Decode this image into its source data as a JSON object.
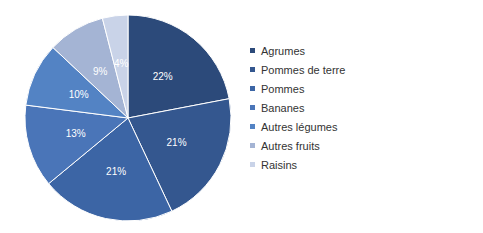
{
  "chart_data": {
    "type": "pie",
    "categories": [
      "Agrumes",
      "Pommes de terre",
      "Pommes",
      "Bananes",
      "Autres légumes",
      "Autres fruits",
      "Raisins"
    ],
    "values": [
      22,
      21,
      21,
      13,
      10,
      9,
      4
    ],
    "value_labels": [
      "22%",
      "21%",
      "21%",
      "13%",
      "10%",
      "9%",
      "4%"
    ],
    "colors": [
      "#2c4a7a",
      "#34578f",
      "#3c65a5",
      "#4a75b8",
      "#5383c4",
      "#a4b4d4",
      "#c9d3e8"
    ],
    "data_labels": true,
    "legend": "right"
  }
}
